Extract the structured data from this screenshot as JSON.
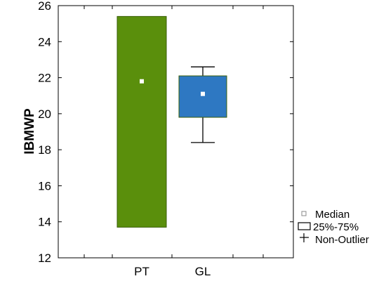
{
  "chart_data": {
    "type": "boxplot",
    "ylabel": "IBMWP",
    "ylim": [
      12,
      26
    ],
    "y_ticks": [
      12,
      14,
      16,
      18,
      20,
      22,
      24,
      26
    ],
    "categories": [
      "PT",
      "GL"
    ],
    "boxes": [
      {
        "category": "PT",
        "color": "#5a8f0c",
        "median": 21.8,
        "q1": 13.7,
        "q3": 25.4,
        "whisker_low": 13.7,
        "whisker_high": 25.4
      },
      {
        "category": "GL",
        "color": "#2e78c2",
        "median": 21.1,
        "q1": 19.8,
        "q3": 22.1,
        "whisker_low": 18.4,
        "whisker_high": 22.6
      }
    ],
    "legend": {
      "placement": "right",
      "items": [
        "Median",
        "25%-75%",
        "Non-Outlier"
      ]
    },
    "grid": false
  }
}
